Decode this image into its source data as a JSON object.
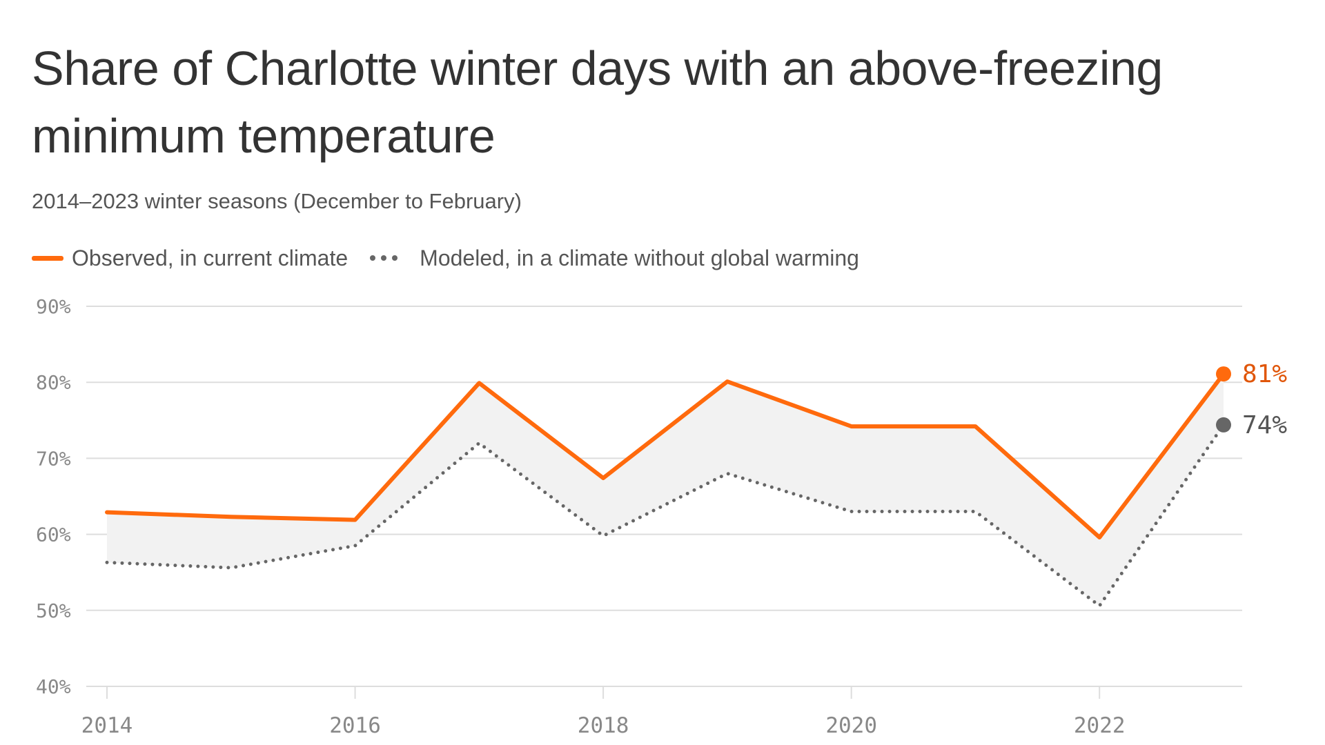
{
  "title": "Share of Charlotte winter days with an above-freezing minimum temperature",
  "subtitle": "2014–2023 winter seasons (December to February)",
  "legend": {
    "observed": "Observed, in current climate",
    "modeled": "Modeled, in a climate without global warming"
  },
  "colors": {
    "observed": "#ff6a0d",
    "observed_label": "#e0560a",
    "modeled": "#666666",
    "band": "#f2f2f2",
    "grid": "#dddddd",
    "axis_text": "#888888"
  },
  "chart_data": {
    "type": "line",
    "title": "Share of Charlotte winter days with an above-freezing minimum temperature",
    "subtitle": "2014–2023 winter seasons (December to February)",
    "xlabel": "",
    "ylabel": "",
    "x": [
      2014,
      2015,
      2016,
      2017,
      2018,
      2019,
      2020,
      2021,
      2022,
      2023
    ],
    "xlim": [
      2014,
      2023.2
    ],
    "x_ticks": [
      2014,
      2016,
      2018,
      2020,
      2022
    ],
    "x_tick_labels": [
      "2014",
      "2016",
      "2018",
      "2020",
      "2022"
    ],
    "ylim": [
      40,
      90
    ],
    "y_ticks": [
      40,
      50,
      60,
      70,
      80,
      90
    ],
    "y_tick_labels": [
      "40%",
      "50%",
      "60%",
      "70%",
      "80%",
      "90%"
    ],
    "grid": true,
    "series": [
      {
        "name": "Observed, in current climate",
        "style": "solid",
        "values": [
          62.9,
          62.3,
          61.9,
          79.9,
          67.4,
          80.1,
          74.2,
          74.2,
          59.6,
          81.1
        ],
        "end_label": "81%"
      },
      {
        "name": "Modeled, in a climate without global warming",
        "style": "dotted",
        "values": [
          56.3,
          55.6,
          58.5,
          72.0,
          59.8,
          68.0,
          63.0,
          63.0,
          50.6,
          74.4
        ],
        "end_label": "74%"
      }
    ],
    "shaded_area": "between series"
  }
}
